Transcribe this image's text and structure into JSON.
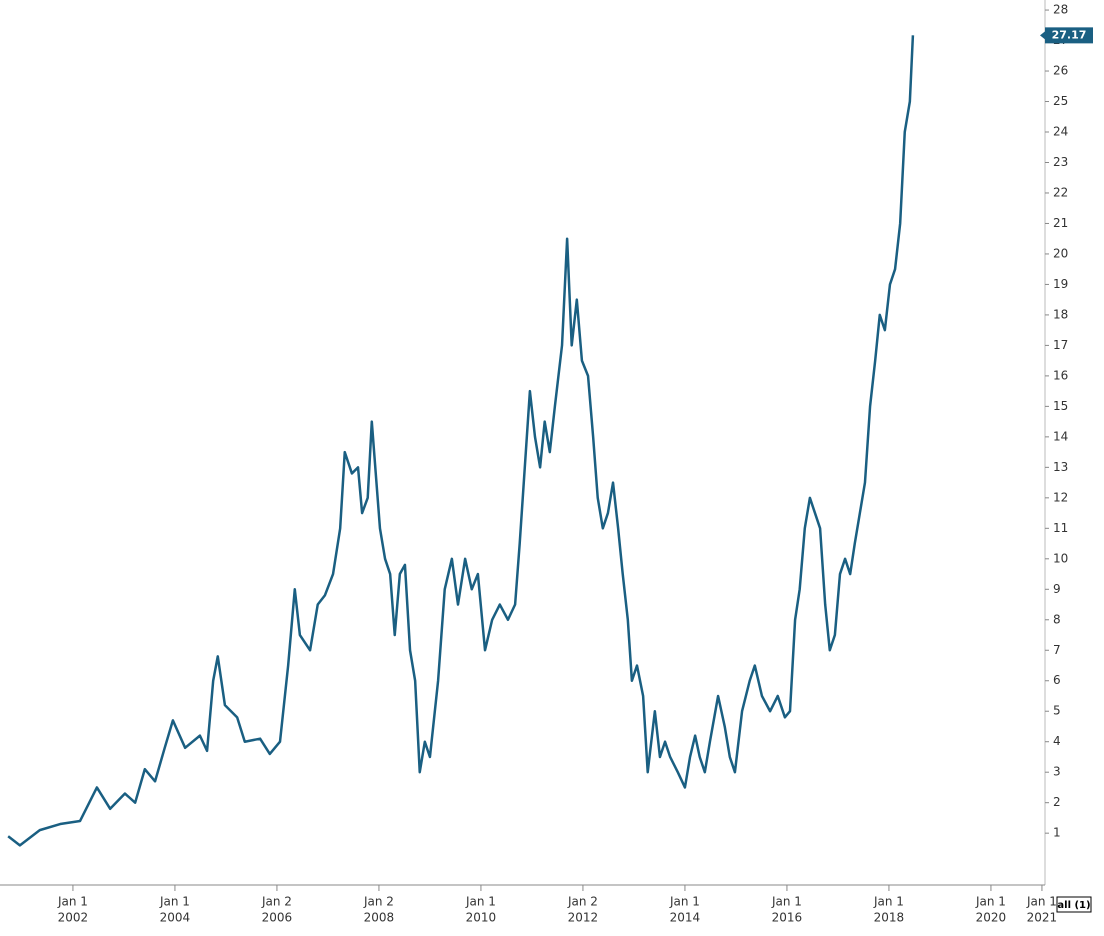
{
  "chart_data": {
    "type": "line",
    "x": [
      2000.73,
      2000.96,
      2001.35,
      2001.75,
      2002.14,
      2002.47,
      2002.73,
      2003.02,
      2003.22,
      2003.41,
      2003.61,
      2003.8,
      2003.96,
      2004.2,
      2004.49,
      2004.63,
      2004.75,
      2004.84,
      2004.98,
      2005.22,
      2005.37,
      2005.67,
      2005.86,
      2006.06,
      2006.22,
      2006.35,
      2006.45,
      2006.65,
      2006.8,
      2006.94,
      2007.1,
      2007.24,
      2007.33,
      2007.47,
      2007.59,
      2007.67,
      2007.78,
      2007.86,
      2008.02,
      2008.12,
      2008.22,
      2008.31,
      2008.41,
      2008.51,
      2008.61,
      2008.71,
      2008.8,
      2008.9,
      2009.0,
      2009.16,
      2009.29,
      2009.43,
      2009.55,
      2009.69,
      2009.82,
      2009.94,
      2010.08,
      2010.22,
      2010.37,
      2010.53,
      2010.67,
      2010.76,
      2010.86,
      2010.96,
      2011.06,
      2011.16,
      2011.25,
      2011.35,
      2011.45,
      2011.59,
      2011.69,
      2011.78,
      2011.88,
      2011.98,
      2012.1,
      2012.2,
      2012.29,
      2012.39,
      2012.49,
      2012.59,
      2012.69,
      2012.78,
      2012.88,
      2012.96,
      2013.06,
      2013.18,
      2013.27,
      2013.41,
      2013.51,
      2013.61,
      2013.71,
      2013.86,
      2014.0,
      2014.1,
      2014.2,
      2014.29,
      2014.39,
      2014.49,
      2014.65,
      2014.78,
      2014.88,
      2014.98,
      2015.12,
      2015.27,
      2015.37,
      2015.51,
      2015.67,
      2015.82,
      2015.96,
      2016.06,
      2016.16,
      2016.25,
      2016.35,
      2016.45,
      2016.55,
      2016.65,
      2016.75,
      2016.84,
      2016.94,
      2017.04,
      2017.14,
      2017.24,
      2017.33,
      2017.43,
      2017.53,
      2017.63,
      2017.73,
      2017.82,
      2017.92,
      2018.02,
      2018.12,
      2018.22,
      2018.31,
      2018.41,
      2018.47
    ],
    "series": [
      {
        "color": "#1a5f82",
        "values": [
          0.9,
          0.6,
          1.1,
          1.3,
          1.4,
          2.5,
          1.8,
          2.3,
          2.0,
          3.1,
          2.7,
          3.8,
          4.7,
          3.8,
          4.2,
          3.7,
          6.0,
          6.8,
          5.2,
          4.8,
          4.0,
          4.1,
          3.6,
          4.0,
          6.5,
          9.0,
          7.5,
          7.0,
          8.5,
          8.8,
          9.5,
          11.0,
          13.5,
          12.8,
          13.0,
          11.5,
          12.0,
          14.5,
          11.0,
          10.0,
          9.5,
          7.5,
          9.5,
          9.8,
          7.0,
          6.0,
          3.0,
          4.0,
          3.5,
          6.0,
          9.0,
          10.0,
          8.5,
          10.0,
          9.0,
          9.5,
          7.0,
          8.0,
          8.5,
          8.0,
          8.5,
          10.5,
          13.0,
          15.5,
          14.0,
          13.0,
          14.5,
          13.5,
          15.0,
          17.0,
          20.5,
          17.0,
          18.5,
          16.5,
          16.0,
          14.0,
          12.0,
          11.0,
          11.5,
          12.5,
          11.0,
          9.5,
          8.0,
          6.0,
          6.5,
          5.5,
          3.0,
          5.0,
          3.5,
          4.0,
          3.5,
          3.0,
          2.5,
          3.5,
          4.2,
          3.5,
          3.0,
          4.0,
          5.5,
          4.5,
          3.5,
          3.0,
          5.0,
          6.0,
          6.5,
          5.5,
          5.0,
          5.5,
          4.8,
          5.0,
          8.0,
          9.0,
          11.0,
          12.0,
          11.5,
          11.0,
          8.5,
          7.0,
          7.5,
          9.5,
          10.0,
          9.5,
          10.5,
          11.5,
          12.5,
          15.0,
          16.5,
          18.0,
          17.5,
          19.0,
          19.5,
          21.0,
          24.0,
          25.0,
          27.17
        ]
      }
    ],
    "last_price": 27.17,
    "xlim": [
      2000.57,
      2021.06
    ],
    "xticks": [
      {
        "value": 2002,
        "label": "Jan 1",
        "year": "2002"
      },
      {
        "value": 2004,
        "label": "Jan 1",
        "year": "2004"
      },
      {
        "value": 2006,
        "label": "Jan 2",
        "year": "2006"
      },
      {
        "value": 2008,
        "label": "Jan 2",
        "year": "2008"
      },
      {
        "value": 2010,
        "label": "Jan 1",
        "year": "2010"
      },
      {
        "value": 2012,
        "label": "Jan 2",
        "year": "2012"
      },
      {
        "value": 2014,
        "label": "Jan 1",
        "year": "2014"
      },
      {
        "value": 2016,
        "label": "Jan 1",
        "year": "2016"
      },
      {
        "value": 2018,
        "label": "Jan 1",
        "year": "2018"
      },
      {
        "value": 2020,
        "label": "Jan 1",
        "year": "2020"
      },
      {
        "value": 2021,
        "label": "Jan 1",
        "year": "2021"
      }
    ],
    "ylim": [
      -0.7,
      28.33
    ],
    "yticks": [
      1,
      2,
      3,
      4,
      5,
      6,
      7,
      8,
      9,
      10,
      11,
      12,
      13,
      14,
      15,
      16,
      17,
      18,
      19,
      20,
      21,
      22,
      23,
      24,
      25,
      26,
      27,
      28
    ],
    "button": "all (1)"
  }
}
